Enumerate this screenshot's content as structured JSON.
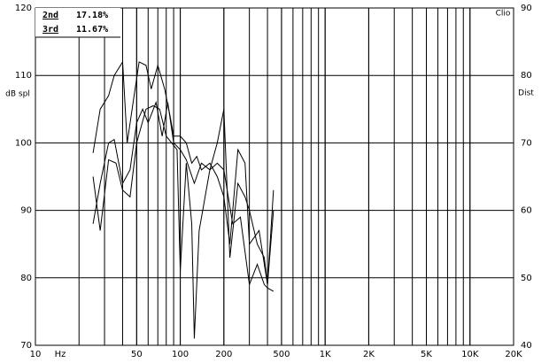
{
  "chart_data": {
    "type": "line",
    "ylabel": "dB spl",
    "y2label": "Dist",
    "brand": "Clio",
    "xunit": "Hz",
    "xlog": true,
    "xlim": [
      10,
      20000
    ],
    "xticks": [
      10,
      50,
      100,
      200,
      500,
      {
        "value": 1000,
        "label": "1K"
      },
      {
        "value": 2000,
        "label": "2K"
      },
      {
        "value": 5000,
        "label": "5K"
      },
      {
        "value": 10000,
        "label": "10K"
      },
      {
        "value": 20000,
        "label": "20K"
      }
    ],
    "ylim": [
      70,
      120
    ],
    "yticks": [
      70,
      80,
      90,
      100,
      110,
      120
    ],
    "y2lim": [
      40,
      90
    ],
    "y2ticks": [
      40,
      50,
      60,
      70,
      80,
      90
    ],
    "grid": true,
    "legend": [
      {
        "name": "2nd",
        "value": 17.18,
        "label": "17.18%"
      },
      {
        "name": "3rd",
        "value": 11.67,
        "label": "11.67%"
      }
    ],
    "series": [
      {
        "color": "#000000",
        "x": [
          25,
          28,
          32,
          35,
          40,
          43,
          48,
          52,
          58,
          63,
          70,
          78,
          85,
          90,
          100,
          110,
          120,
          130,
          140,
          160,
          180,
          200,
          220,
          250,
          280,
          300,
          350,
          400,
          440
        ],
        "values": [
          98.5,
          105,
          107,
          110,
          112,
          100,
          107,
          112,
          111.5,
          108,
          111.5,
          108,
          104,
          101,
          101,
          100,
          97,
          98,
          96,
          97,
          95,
          92,
          85,
          99,
          97,
          85,
          87,
          79,
          93
        ]
      },
      {
        "color": "#000000",
        "x": [
          25,
          28,
          32,
          35,
          40,
          45,
          50,
          55,
          60,
          68,
          75,
          82,
          90,
          100,
          110,
          125,
          140,
          160,
          180,
          200,
          220,
          250,
          280,
          300,
          340,
          380,
          400,
          440
        ],
        "values": [
          88,
          94,
          100,
          100.5,
          94,
          96,
          103,
          105,
          103,
          106,
          101,
          106,
          100,
          99,
          97.5,
          94,
          97,
          96,
          100,
          105,
          83,
          94,
          92,
          90,
          85,
          83,
          79,
          90
        ]
      },
      {
        "color": "#000000",
        "x": [
          25,
          28,
          32,
          36,
          40,
          45,
          50,
          58,
          65,
          72,
          80,
          95,
          100,
          110,
          120,
          125,
          135,
          160,
          180,
          200,
          230,
          260,
          300,
          340,
          380,
          400,
          440
        ],
        "values": [
          95,
          87,
          97.5,
          97,
          93,
          92,
          100,
          105,
          105.5,
          105,
          101,
          99,
          81,
          97,
          88,
          71,
          87,
          96,
          97,
          96,
          88,
          89,
          79,
          82,
          79,
          78.5,
          78
        ]
      }
    ]
  }
}
